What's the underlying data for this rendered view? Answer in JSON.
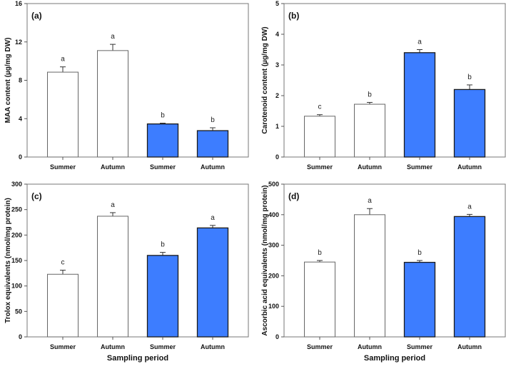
{
  "chart_data": [
    {
      "type": "bar",
      "panel": "(a)",
      "ylabel": "MAA content (µg/mg DW)",
      "xlabel": "",
      "ylim": [
        0,
        16
      ],
      "yticks": [
        0,
        4,
        8,
        12,
        16
      ],
      "categories": [
        "Summer",
        "Autumn",
        "Summer",
        "Autumn"
      ],
      "values": [
        8.85,
        11.1,
        3.45,
        2.75
      ],
      "errors": [
        0.55,
        0.65,
        0.08,
        0.3
      ],
      "letters": [
        "a",
        "a",
        "b",
        "b"
      ],
      "fills": [
        "#ffffff",
        "#ffffff",
        "#3d7dff",
        "#3d7dff"
      ]
    },
    {
      "type": "bar",
      "panel": "(b)",
      "ylabel": "Carotenoid content (µg/mg DW)",
      "xlabel": "",
      "ylim": [
        0,
        5
      ],
      "yticks": [
        0,
        1,
        2,
        3,
        4,
        5
      ],
      "categories": [
        "Summer",
        "Autumn",
        "Summer",
        "Autumn"
      ],
      "values": [
        1.33,
        1.72,
        3.4,
        2.2
      ],
      "errors": [
        0.05,
        0.06,
        0.1,
        0.15
      ],
      "letters": [
        "c",
        "b",
        "a",
        "b"
      ],
      "fills": [
        "#ffffff",
        "#ffffff",
        "#3d7dff",
        "#3d7dff"
      ]
    },
    {
      "type": "bar",
      "panel": "(c)",
      "ylabel": "Trolox equivalents (nmol/mg protein)",
      "xlabel": "Sampling period",
      "ylim": [
        0,
        300
      ],
      "yticks": [
        0,
        50,
        100,
        150,
        200,
        250,
        300
      ],
      "categories": [
        "Summer",
        "Autumn",
        "Summer",
        "Autumn"
      ],
      "values": [
        123,
        237,
        160,
        214
      ],
      "errors": [
        8,
        7,
        6,
        5
      ],
      "letters": [
        "c",
        "a",
        "b",
        "a"
      ],
      "fills": [
        "#ffffff",
        "#ffffff",
        "#3d7dff",
        "#3d7dff"
      ]
    },
    {
      "type": "bar",
      "panel": "(d)",
      "ylabel": "Ascorbic acid equivalents (nmol/mg protein)",
      "xlabel": "Sampling period",
      "ylim": [
        0,
        500
      ],
      "yticks": [
        0,
        100,
        200,
        300,
        400,
        500
      ],
      "categories": [
        "Summer",
        "Autumn",
        "Summer",
        "Autumn"
      ],
      "values": [
        245,
        400,
        244,
        394
      ],
      "errors": [
        5,
        20,
        6,
        7
      ],
      "letters": [
        "b",
        "a",
        "b",
        "a"
      ],
      "fills": [
        "#ffffff",
        "#ffffff",
        "#3d7dff",
        "#3d7dff"
      ]
    }
  ]
}
